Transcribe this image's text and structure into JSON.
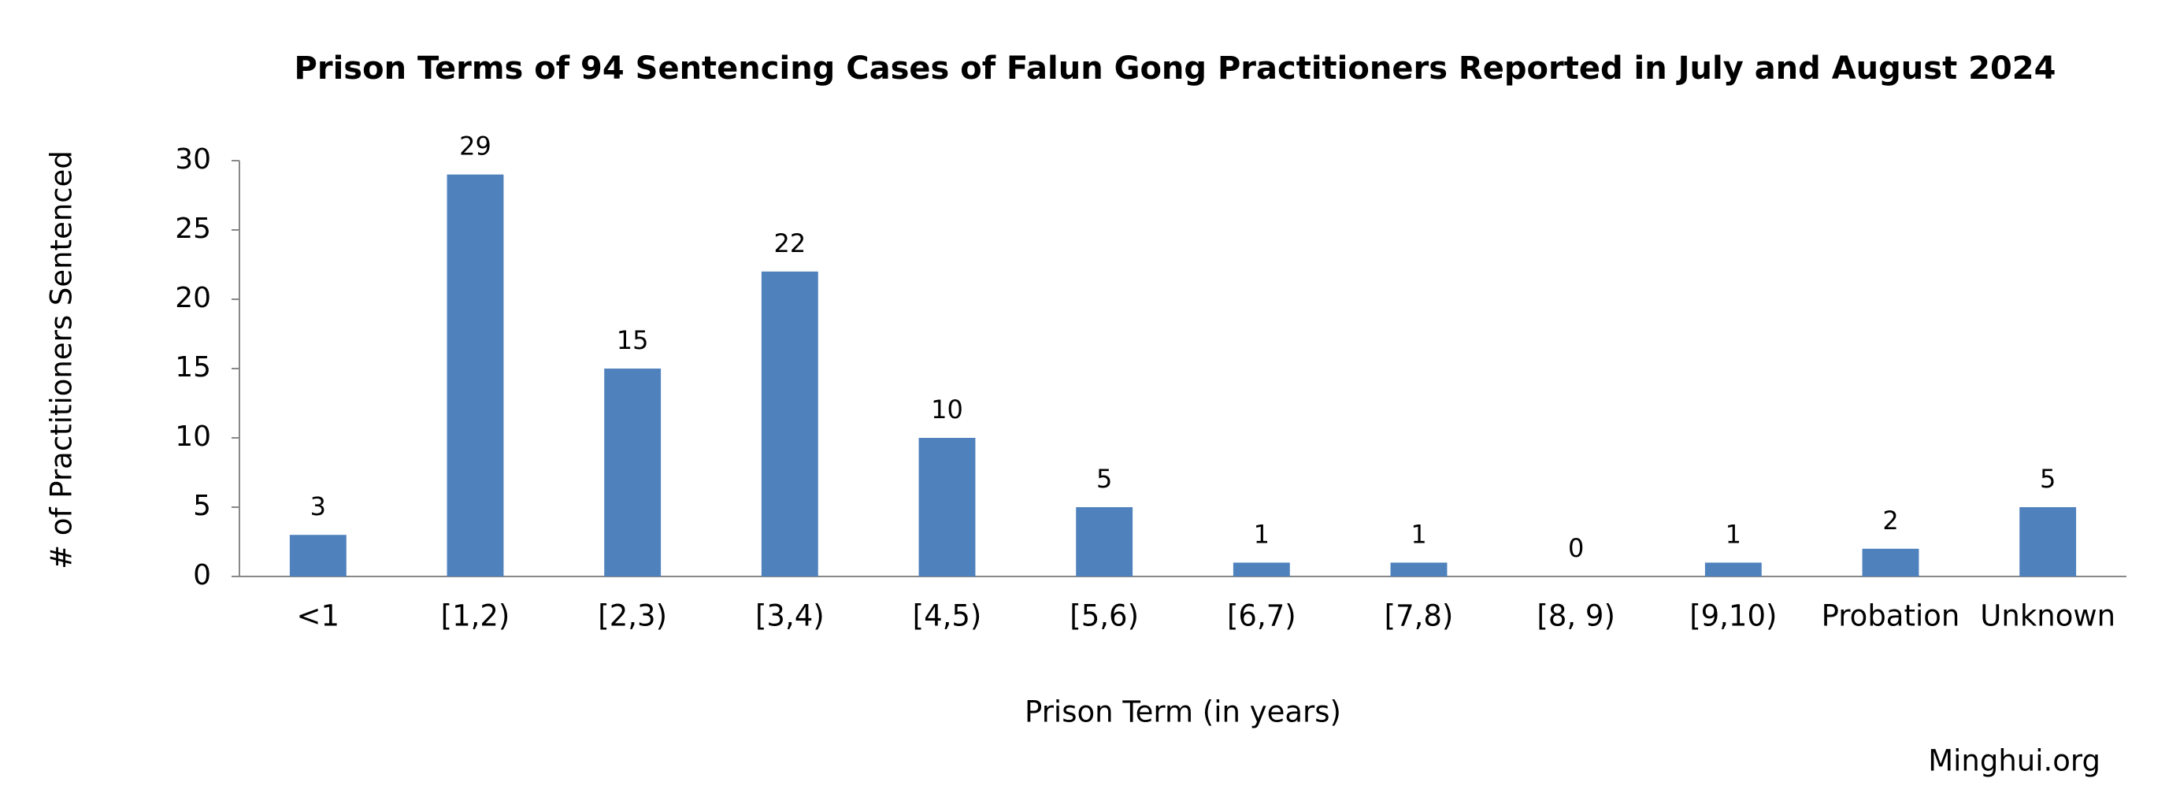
{
  "chart_data": {
    "type": "bar",
    "title": "Prison Terms of 94 Sentencing Cases of Falun Gong Practitioners Reported in July and August 2024",
    "x_label": "Prison Term (in years)",
    "y_label": "# of Practitioners Sentenced",
    "source": "Minghui.org",
    "categories": [
      "<1",
      "[1,2)",
      "[2,3)",
      "[3,4)",
      "[4,5)",
      "[5,6)",
      "[6,7)",
      "[7,8)",
      "[8, 9)",
      "[9,10)",
      "Probation",
      "Unknown"
    ],
    "values": [
      3,
      29,
      15,
      22,
      10,
      5,
      1,
      1,
      0,
      1,
      2,
      5
    ],
    "color": "#4f81bd",
    "ylim": [
      0,
      30
    ],
    "yticks": [
      0,
      5,
      10,
      15,
      20,
      25,
      30
    ],
    "grid": false
  }
}
